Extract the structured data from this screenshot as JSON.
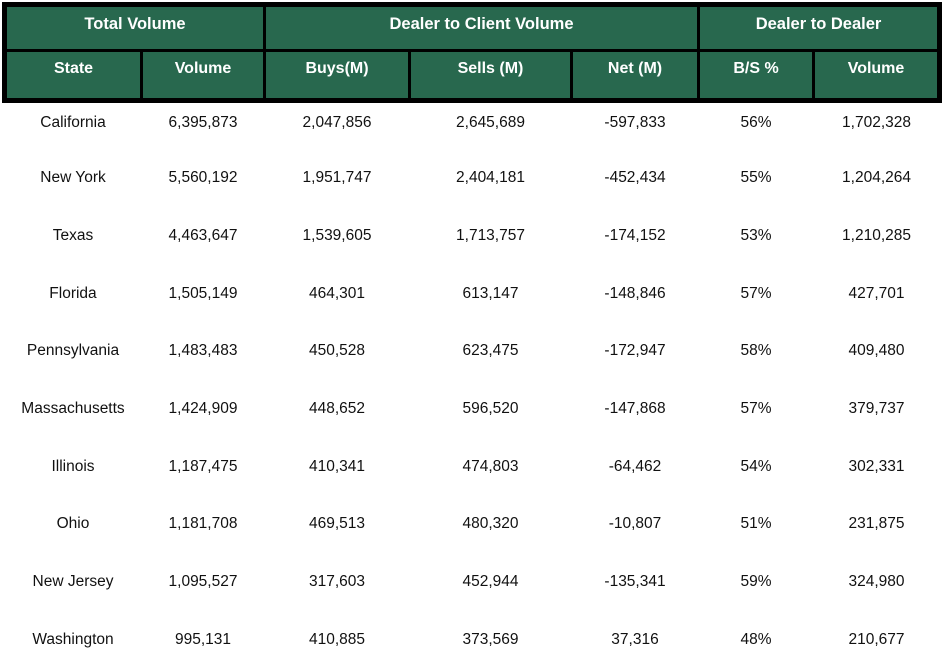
{
  "chart_data": {
    "type": "table",
    "group_headers": [
      {
        "label": "Total Volume",
        "colspan": 2
      },
      {
        "label": "Dealer to Client Volume",
        "colspan": 3
      },
      {
        "label": "Dealer to Dealer",
        "colspan": 2
      }
    ],
    "columns": [
      "State",
      "Volume",
      "Buys(M)",
      "Sells (M)",
      "Net (M)",
      "B/S %",
      "Volume"
    ],
    "rows": [
      [
        "California",
        "6,395,873",
        "2,047,856",
        "2,645,689",
        "-597,833",
        "56%",
        "1,702,328"
      ],
      [
        "New York",
        "5,560,192",
        "1,951,747",
        "2,404,181",
        "-452,434",
        "55%",
        "1,204,264"
      ],
      [
        "Texas",
        "4,463,647",
        "1,539,605",
        "1,713,757",
        "-174,152",
        "53%",
        "1,210,285"
      ],
      [
        "Florida",
        "1,505,149",
        "464,301",
        "613,147",
        "-148,846",
        "57%",
        "427,701"
      ],
      [
        "Pennsylvania",
        "1,483,483",
        "450,528",
        "623,475",
        "-172,947",
        "58%",
        "409,480"
      ],
      [
        "Massachusetts",
        "1,424,909",
        "448,652",
        "596,520",
        "-147,868",
        "57%",
        "379,737"
      ],
      [
        "Illinois",
        "1,187,475",
        "410,341",
        "474,803",
        "-64,462",
        "54%",
        "302,331"
      ],
      [
        "Ohio",
        "1,181,708",
        "469,513",
        "480,320",
        "-10,807",
        "51%",
        "231,875"
      ],
      [
        "New Jersey",
        "1,095,527",
        "317,603",
        "452,944",
        "-135,341",
        "59%",
        "324,980"
      ],
      [
        "Washington",
        "995,131",
        "410,885",
        "373,569",
        "37,316",
        "48%",
        "210,677"
      ]
    ]
  },
  "colors": {
    "header_bg": "#28684E",
    "header_text": "#FFFFFF",
    "border": "#000000",
    "body_text": "#111111",
    "body_bg": "#FFFFFF"
  }
}
